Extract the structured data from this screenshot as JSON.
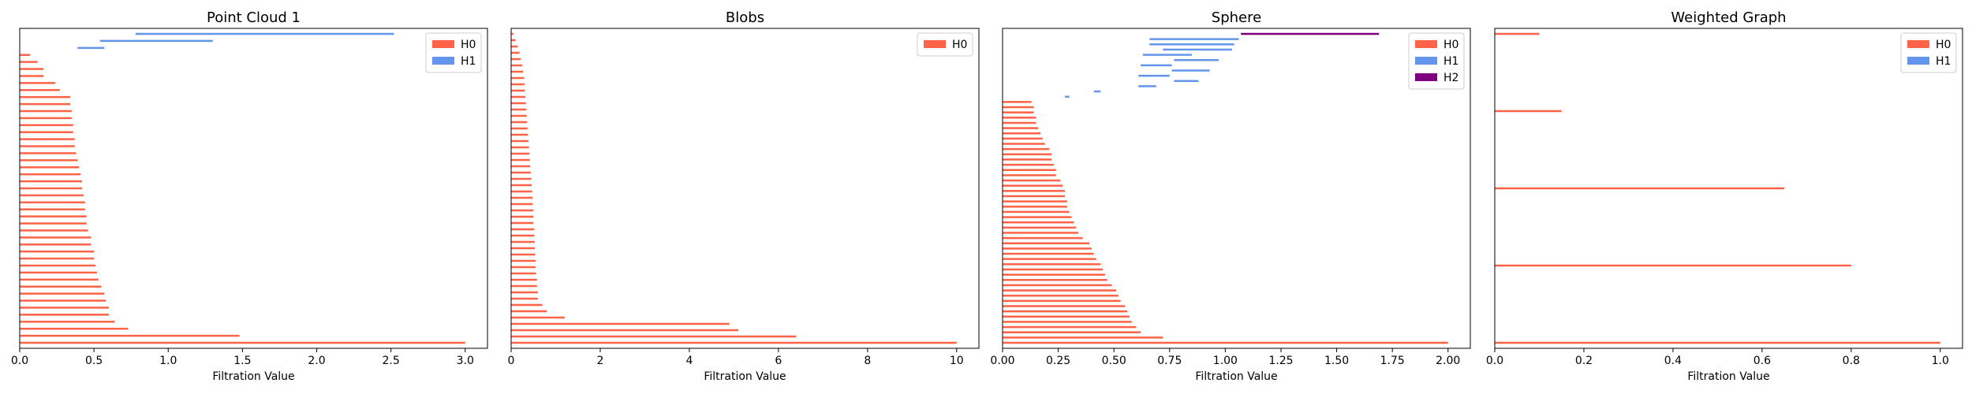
{
  "chart_data": [
    {
      "type": "bar",
      "chart_kind": "persistence-barcode",
      "title": "Point Cloud 1",
      "xlabel": "Filtration Value",
      "xlim": [
        0,
        3.15
      ],
      "xticks": [
        0.0,
        0.5,
        1.0,
        1.5,
        2.0,
        2.5,
        3.0
      ],
      "legend": {
        "placement": "top-right",
        "entries": [
          "H0",
          "H1"
        ]
      },
      "grid": false,
      "series": [
        {
          "name": "H0",
          "color": "#ff6347",
          "bars": [
            [
              0,
              3.0
            ],
            [
              0,
              1.48
            ],
            [
              0,
              0.73
            ],
            [
              0,
              0.64
            ],
            [
              0,
              0.6
            ],
            [
              0,
              0.6
            ],
            [
              0,
              0.58
            ],
            [
              0,
              0.57
            ],
            [
              0,
              0.55
            ],
            [
              0,
              0.53
            ],
            [
              0,
              0.52
            ],
            [
              0,
              0.51
            ],
            [
              0,
              0.5
            ],
            [
              0,
              0.5
            ],
            [
              0,
              0.48
            ],
            [
              0,
              0.48
            ],
            [
              0,
              0.46
            ],
            [
              0,
              0.45
            ],
            [
              0,
              0.45
            ],
            [
              0,
              0.44
            ],
            [
              0,
              0.44
            ],
            [
              0,
              0.43
            ],
            [
              0,
              0.42
            ],
            [
              0,
              0.42
            ],
            [
              0,
              0.41
            ],
            [
              0,
              0.4
            ],
            [
              0,
              0.39
            ],
            [
              0,
              0.38
            ],
            [
              0,
              0.37
            ],
            [
              0,
              0.37
            ],
            [
              0,
              0.36
            ],
            [
              0,
              0.36
            ],
            [
              0,
              0.35
            ],
            [
              0,
              0.35
            ],
            [
              0,
              0.34
            ],
            [
              0,
              0.34
            ],
            [
              0,
              0.27
            ],
            [
              0,
              0.24
            ],
            [
              0,
              0.16
            ],
            [
              0,
              0.16
            ],
            [
              0,
              0.12
            ],
            [
              0,
              0.07
            ]
          ]
        },
        {
          "name": "H1",
          "color": "#6495ed",
          "bars": [
            [
              0.39,
              0.57
            ],
            [
              0.54,
              1.3
            ],
            [
              0.78,
              2.52
            ]
          ]
        }
      ]
    },
    {
      "type": "bar",
      "chart_kind": "persistence-barcode",
      "title": "Blobs",
      "xlabel": "Filtration Value",
      "xlim": [
        0,
        10.5
      ],
      "xticks": [
        0,
        2,
        4,
        6,
        8,
        10
      ],
      "legend": {
        "placement": "top-right",
        "entries": [
          "H0"
        ]
      },
      "grid": false,
      "series": [
        {
          "name": "H0",
          "color": "#ff6347",
          "bars": [
            [
              0,
              10.0
            ],
            [
              0,
              6.4
            ],
            [
              0,
              5.1
            ],
            [
              0,
              4.9
            ],
            [
              0,
              1.2
            ],
            [
              0,
              0.8
            ],
            [
              0,
              0.7
            ],
            [
              0,
              0.6
            ],
            [
              0,
              0.6
            ],
            [
              0,
              0.58
            ],
            [
              0,
              0.58
            ],
            [
              0,
              0.56
            ],
            [
              0,
              0.55
            ],
            [
              0,
              0.55
            ],
            [
              0,
              0.54
            ],
            [
              0,
              0.53
            ],
            [
              0,
              0.53
            ],
            [
              0,
              0.52
            ],
            [
              0,
              0.52
            ],
            [
              0,
              0.5
            ],
            [
              0,
              0.5
            ],
            [
              0,
              0.5
            ],
            [
              0,
              0.48
            ],
            [
              0,
              0.48
            ],
            [
              0,
              0.47
            ],
            [
              0,
              0.46
            ],
            [
              0,
              0.45
            ],
            [
              0,
              0.44
            ],
            [
              0,
              0.43
            ],
            [
              0,
              0.42
            ],
            [
              0,
              0.41
            ],
            [
              0,
              0.4
            ],
            [
              0,
              0.39
            ],
            [
              0,
              0.38
            ],
            [
              0,
              0.37
            ],
            [
              0,
              0.36
            ],
            [
              0,
              0.35
            ],
            [
              0,
              0.34
            ],
            [
              0,
              0.33
            ],
            [
              0,
              0.32
            ],
            [
              0,
              0.31
            ],
            [
              0,
              0.3
            ],
            [
              0,
              0.29
            ],
            [
              0,
              0.27
            ],
            [
              0,
              0.25
            ],
            [
              0,
              0.22
            ],
            [
              0,
              0.19
            ],
            [
              0,
              0.15
            ],
            [
              0,
              0.1
            ],
            [
              0,
              0.05
            ]
          ]
        }
      ]
    },
    {
      "type": "bar",
      "chart_kind": "persistence-barcode",
      "title": "Sphere",
      "xlabel": "Filtration Value",
      "xlim": [
        0,
        2.1
      ],
      "xticks": [
        0.0,
        0.25,
        0.5,
        0.75,
        1.0,
        1.25,
        1.5,
        1.75,
        2.0
      ],
      "legend": {
        "placement": "top-right",
        "entries": [
          "H0",
          "H1",
          "H2"
        ]
      },
      "grid": false,
      "series": [
        {
          "name": "H0",
          "color": "#ff6347",
          "bars": [
            [
              0,
              2.0
            ],
            [
              0,
              0.72
            ],
            [
              0,
              0.62
            ],
            [
              0,
              0.6
            ],
            [
              0,
              0.58
            ],
            [
              0,
              0.57
            ],
            [
              0,
              0.56
            ],
            [
              0,
              0.55
            ],
            [
              0,
              0.53
            ],
            [
              0,
              0.52
            ],
            [
              0,
              0.51
            ],
            [
              0,
              0.49
            ],
            [
              0,
              0.47
            ],
            [
              0,
              0.46
            ],
            [
              0,
              0.45
            ],
            [
              0,
              0.44
            ],
            [
              0,
              0.42
            ],
            [
              0,
              0.41
            ],
            [
              0,
              0.4
            ],
            [
              0,
              0.39
            ],
            [
              0,
              0.36
            ],
            [
              0,
              0.34
            ],
            [
              0,
              0.33
            ],
            [
              0,
              0.32
            ],
            [
              0,
              0.31
            ],
            [
              0,
              0.3
            ],
            [
              0,
              0.29
            ],
            [
              0,
              0.29
            ],
            [
              0,
              0.28
            ],
            [
              0,
              0.28
            ],
            [
              0,
              0.27
            ],
            [
              0,
              0.26
            ],
            [
              0,
              0.24
            ],
            [
              0,
              0.24
            ],
            [
              0,
              0.23
            ],
            [
              0,
              0.22
            ],
            [
              0,
              0.22
            ],
            [
              0,
              0.21
            ],
            [
              0,
              0.19
            ],
            [
              0,
              0.18
            ],
            [
              0,
              0.17
            ],
            [
              0,
              0.16
            ],
            [
              0,
              0.15
            ],
            [
              0,
              0.15
            ],
            [
              0,
              0.14
            ],
            [
              0,
              0.14
            ],
            [
              0,
              0.13
            ]
          ]
        },
        {
          "name": "H1",
          "color": "#6495ed",
          "bars": [
            [
              0.28,
              0.3
            ],
            [
              0.41,
              0.44
            ],
            [
              0.61,
              0.69
            ],
            [
              0.77,
              0.88
            ],
            [
              0.61,
              0.75
            ],
            [
              0.76,
              0.93
            ],
            [
              0.62,
              0.76
            ],
            [
              0.77,
              0.97
            ],
            [
              0.63,
              0.85
            ],
            [
              0.72,
              1.03
            ],
            [
              0.66,
              1.04
            ],
            [
              0.66,
              1.06
            ]
          ]
        },
        {
          "name": "H2",
          "color": "#800080",
          "bars": [
            [
              1.07,
              1.69
            ]
          ]
        }
      ]
    },
    {
      "type": "bar",
      "chart_kind": "persistence-barcode",
      "title": "Weighted Graph",
      "xlabel": "Filtration Value",
      "xlim": [
        0,
        1.05
      ],
      "xticks": [
        0.0,
        0.2,
        0.4,
        0.6,
        0.8,
        1.0
      ],
      "legend": {
        "placement": "top-right",
        "entries": [
          "H0",
          "H1"
        ]
      },
      "grid": false,
      "series": [
        {
          "name": "H0",
          "color": "#ff6347",
          "bars": [
            [
              0,
              1.0
            ],
            [
              0,
              0.8
            ],
            [
              0,
              0.65
            ],
            [
              0,
              0.15
            ],
            [
              0,
              0.1
            ]
          ]
        },
        {
          "name": "H1",
          "color": "#6495ed",
          "bars": []
        }
      ]
    }
  ]
}
